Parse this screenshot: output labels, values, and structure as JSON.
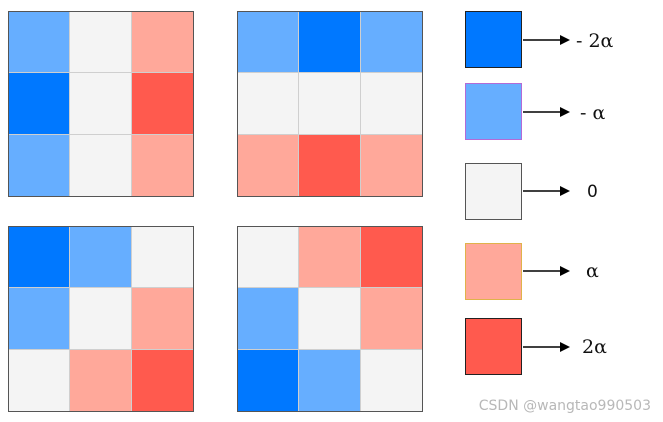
{
  "grids": [
    {
      "cells": [
        "lv-n1",
        "lv-0",
        "lv-p1",
        "lv-n2",
        "lv-0",
        "lv-p2",
        "lv-n1",
        "lv-0",
        "lv-p1"
      ]
    },
    {
      "cells": [
        "lv-n1",
        "lv-n2",
        "lv-n1",
        "lv-0",
        "lv-0",
        "lv-0",
        "lv-p1",
        "lv-p2",
        "lv-p1"
      ]
    },
    {
      "cells": [
        "lv-n2",
        "lv-n1",
        "lv-0",
        "lv-n1",
        "lv-0",
        "lv-p1",
        "lv-0",
        "lv-p1",
        "lv-p2"
      ]
    },
    {
      "cells": [
        "lv-0",
        "lv-p1",
        "lv-p2",
        "lv-n1",
        "lv-0",
        "lv-p1",
        "lv-n2",
        "lv-n1",
        "lv-0"
      ]
    }
  ],
  "legend": [
    {
      "label": "- 2α",
      "color": "#0078ff",
      "edge": "#222222"
    },
    {
      "label": "- α",
      "color": "#66aeff",
      "edge": "#b36ad6"
    },
    {
      "label": "0",
      "color": "#f4f4f4",
      "edge": "#555555"
    },
    {
      "label": "α",
      "color": "#ffa89a",
      "edge": "#e0b24a"
    },
    {
      "label": "2α",
      "color": "#ff5a4e",
      "edge": "#222222"
    }
  ],
  "watermark": "CSDN @wangtao990503"
}
